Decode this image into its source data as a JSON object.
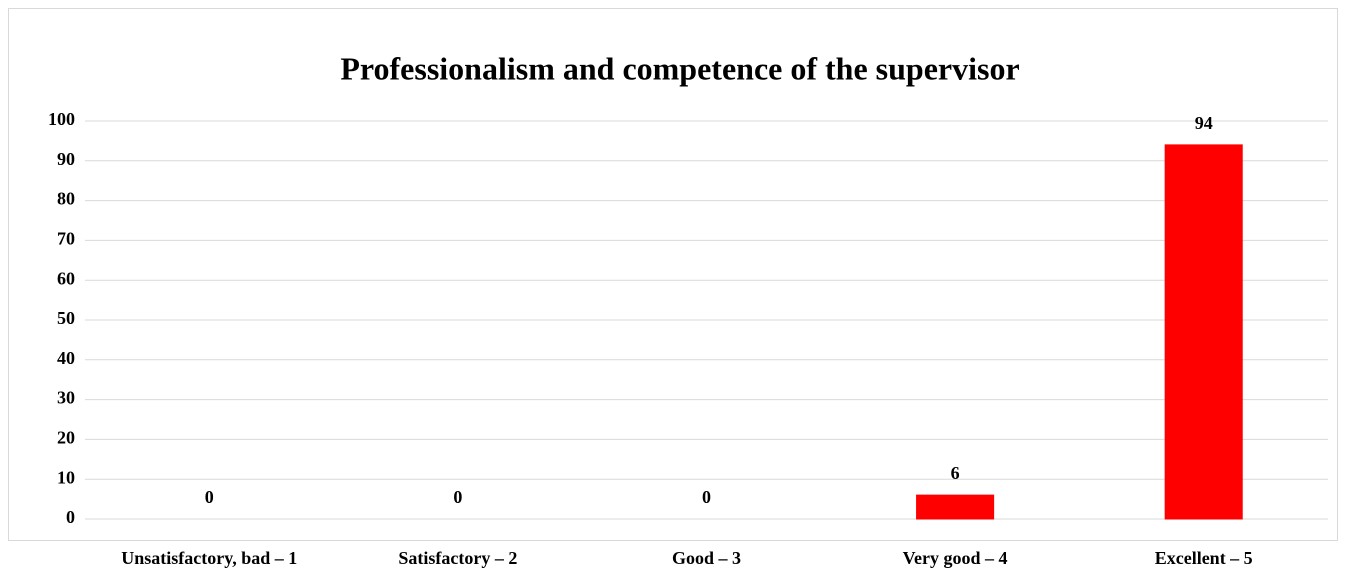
{
  "chart_data": {
    "type": "bar",
    "title": "Professionalism and competence of the supervisor",
    "categories": [
      "Unsatisfactory, bad – 1",
      "Satisfactory – 2",
      "Good – 3",
      "Very good – 4",
      "Excellent – 5"
    ],
    "values": [
      0,
      0,
      0,
      6,
      94
    ],
    "color": "#ff0000",
    "ylim": [
      0,
      100
    ],
    "yticks": [
      0,
      10,
      20,
      30,
      40,
      50,
      60,
      70,
      80,
      90,
      100
    ],
    "grid": true
  }
}
